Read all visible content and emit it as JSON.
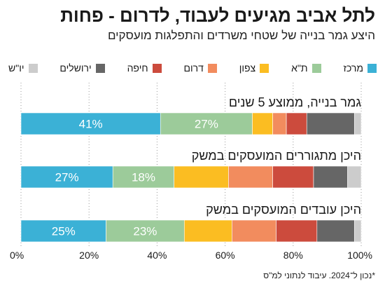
{
  "header": {
    "title": "לתל אביב מגיעים לעבוד, לדרום - פחות",
    "subtitle": "היצע גמר בנייה של שטחי משרדים והתפלגות מועסקים"
  },
  "footnote": "*נכון ל־2024. עיבוד לנתוני למ\"ס",
  "chart_data": {
    "type": "bar",
    "orientation": "horizontal",
    "stacked": true,
    "percent_axis": true,
    "xlim": [
      0,
      100
    ],
    "x_ticks": [
      "0%",
      "20%",
      "40%",
      "60%",
      "80%",
      "100%"
    ],
    "categories": [
      "גמר בנייה, ממוצע 5 שנים",
      "היכן מתגוררים המועסקים במשק",
      "היכן עובדים המועסקים במשק"
    ],
    "series": [
      {
        "name": "מרכז",
        "color": "#3bb1d6",
        "values": [
          41,
          27,
          25
        ],
        "labels": [
          "41%",
          "27%",
          "25%"
        ]
      },
      {
        "name": "ת\"א",
        "color": "#9ccb9a",
        "values": [
          27,
          18,
          23
        ],
        "labels": [
          "27%",
          "18%",
          "23%"
        ]
      },
      {
        "name": "צפון",
        "color": "#fbbd22",
        "values": [
          6,
          16,
          14
        ],
        "labels": [
          "",
          "",
          ""
        ]
      },
      {
        "name": "דרום",
        "color": "#f28c5e",
        "values": [
          4,
          13,
          13
        ],
        "labels": [
          "",
          "",
          ""
        ]
      },
      {
        "name": "חיפה",
        "color": "#cc4b3d",
        "values": [
          6,
          12,
          12
        ],
        "labels": [
          "",
          "",
          ""
        ]
      },
      {
        "name": "ירושלים",
        "color": "#666666",
        "values": [
          14,
          10,
          11
        ],
        "labels": [
          "",
          "",
          ""
        ]
      },
      {
        "name": "יו\"ש",
        "color": "#cccccc",
        "values": [
          2,
          4,
          2
        ],
        "labels": [
          "",
          "",
          ""
        ]
      }
    ],
    "legend_position": "top"
  }
}
